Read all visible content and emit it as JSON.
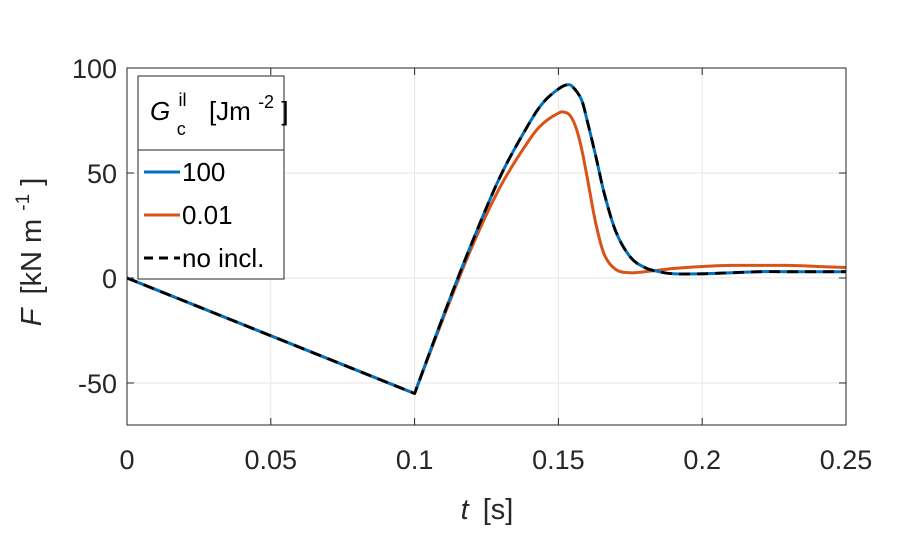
{
  "chart_data": {
    "type": "line",
    "xlabel_symbol": "t",
    "xlabel_unit": "[s]",
    "ylabel_symbol": "F",
    "ylabel_unit_base": "[kN m",
    "ylabel_unit_exp": "-1",
    "ylabel_unit_close": "]",
    "xlim": [
      0,
      0.25
    ],
    "ylim": [
      -70,
      100
    ],
    "xticks": [
      0,
      0.05,
      0.1,
      0.15,
      0.2,
      0.25
    ],
    "xtick_labels": [
      "0",
      "0.05",
      "0.1",
      "0.15",
      "0.2",
      "0.25"
    ],
    "yticks": [
      -50,
      0,
      50,
      100
    ],
    "ytick_labels": [
      "-50",
      "0",
      "50",
      "100"
    ],
    "grid": true,
    "legend": {
      "placement": "top-left",
      "title_symbol": "G",
      "title_subscript": "c",
      "title_superscript": "il",
      "title_unit_base": "[Jm",
      "title_unit_exp": "-2",
      "title_unit_close": "]"
    },
    "series": [
      {
        "name": "100",
        "color": "#0072BD",
        "style": "solid",
        "x": [
          0,
          0.1,
          0.11,
          0.12,
          0.13,
          0.14,
          0.145,
          0.15,
          0.153,
          0.155,
          0.158,
          0.16,
          0.163,
          0.166,
          0.17,
          0.175,
          0.18,
          0.185,
          0.19,
          0.2,
          0.21,
          0.22,
          0.23,
          0.24,
          0.25
        ],
        "y": [
          0,
          -55,
          -18,
          17,
          49,
          74,
          84,
          90,
          92,
          91,
          85,
          75,
          58,
          40,
          22,
          10,
          5,
          3,
          2,
          2,
          2.5,
          3,
          3,
          3,
          3
        ]
      },
      {
        "name": "0.01",
        "color": "#D95319",
        "style": "solid",
        "x": [
          0,
          0.1,
          0.11,
          0.12,
          0.13,
          0.14,
          0.145,
          0.15,
          0.152,
          0.154,
          0.156,
          0.158,
          0.16,
          0.163,
          0.166,
          0.17,
          0.175,
          0.18,
          0.19,
          0.2,
          0.21,
          0.22,
          0.23,
          0.24,
          0.25
        ],
        "y": [
          0,
          -55,
          -19,
          15,
          44,
          66,
          74,
          78.5,
          79,
          77.5,
          72,
          62,
          48,
          26,
          11,
          4,
          2.5,
          3,
          4.5,
          5.5,
          6,
          6,
          6,
          5.5,
          5
        ]
      },
      {
        "name": "no incl.",
        "color": "#000000",
        "style": "dashed",
        "x": [
          0,
          0.1,
          0.11,
          0.12,
          0.13,
          0.14,
          0.145,
          0.15,
          0.153,
          0.155,
          0.158,
          0.16,
          0.163,
          0.166,
          0.17,
          0.175,
          0.18,
          0.185,
          0.19,
          0.2,
          0.21,
          0.22,
          0.23,
          0.24,
          0.25
        ],
        "y": [
          0,
          -55,
          -18,
          17,
          49,
          74,
          84,
          90,
          92,
          91,
          85,
          75,
          58,
          40,
          22,
          10,
          5,
          3,
          2,
          2,
          2.5,
          3,
          3,
          3,
          3
        ]
      }
    ]
  }
}
